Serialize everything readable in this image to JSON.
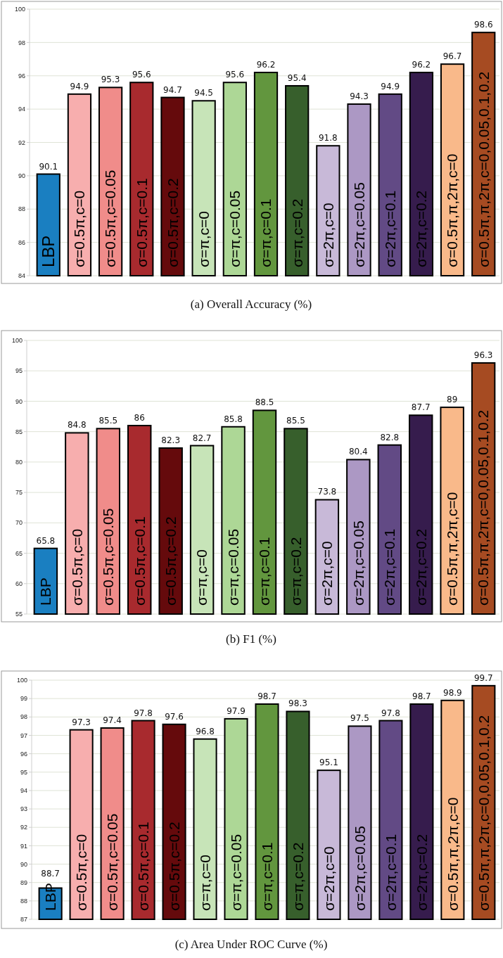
{
  "chart_data": [
    {
      "type": "bar",
      "title": "(a) Overall Accuracy (%)",
      "categories": [
        "LBP",
        "σ=0.5π,c=0",
        "σ=0.5π,c=0.05",
        "σ=0.5π,c=0.1",
        "σ=0.5π,c=0.2",
        "σ=π,c=0",
        "σ=π,c=0.05",
        "σ=π,c=0.1",
        "σ=π,c=0.2",
        "σ=2π,c=0",
        "σ=2π,c=0.05",
        "σ=2π,c=0.1",
        "σ=2π,c=0.2",
        "σ=0.5π,π,2π,c=0",
        "σ=0.5π,π,2π,c=0,0.05,0.1,0.2"
      ],
      "values": [
        90.1,
        94.9,
        95.3,
        95.6,
        94.7,
        94.5,
        95.6,
        96.2,
        95.4,
        91.8,
        94.3,
        94.9,
        96.2,
        96.7,
        98.6
      ],
      "colors": [
        "#1a7fc1",
        "#f7aeae",
        "#f08c8a",
        "#a82a2e",
        "#650a0c",
        "#c7e4b8",
        "#add796",
        "#62963e",
        "#375f2c",
        "#c8b9d8",
        "#ac98c4",
        "#624a85",
        "#361c4d",
        "#f9b98a",
        "#a64b22"
      ],
      "ylim": [
        84,
        100
      ],
      "yticks": [
        84,
        86,
        88,
        90,
        92,
        94,
        96,
        98,
        100
      ],
      "grid": "y",
      "data_labels": true
    },
    {
      "type": "bar",
      "title": "(b) F1 (%)",
      "categories": [
        "LBP",
        "σ=0.5π,c=0",
        "σ=0.5π,c=0.05",
        "σ=0.5π,c=0.1",
        "σ=0.5π,c=0.2",
        "σ=π,c=0",
        "σ=π,c=0.05",
        "σ=π,c=0.1",
        "σ=π,c=0.2",
        "σ=2π,c=0",
        "σ=2π,c=0.05",
        "σ=2π,c=0.1",
        "σ=2π,c=0.2",
        "σ=0.5π,π,2π,c=0",
        "σ=0.5π,π,2π,c=0,0.05,0.1,0.2"
      ],
      "values": [
        65.8,
        84.8,
        85.5,
        86,
        82.3,
        82.7,
        85.8,
        88.5,
        85.5,
        73.8,
        80.4,
        82.8,
        87.7,
        89,
        96.3
      ],
      "colors": [
        "#1a7fc1",
        "#f7aeae",
        "#f08c8a",
        "#a82a2e",
        "#650a0c",
        "#c7e4b8",
        "#add796",
        "#62963e",
        "#375f2c",
        "#c8b9d8",
        "#ac98c4",
        "#624a85",
        "#361c4d",
        "#f9b98a",
        "#a64b22"
      ],
      "ylim": [
        55,
        100
      ],
      "yticks": [
        55,
        60,
        65,
        70,
        75,
        80,
        85,
        90,
        95,
        100
      ],
      "grid": "y",
      "data_labels": true
    },
    {
      "type": "bar",
      "title": "(c) Area Under ROC Curve (%)",
      "categories": [
        "LBP",
        "σ=0.5π,c=0",
        "σ=0.5π,c=0.05",
        "σ=0.5π,c=0.1",
        "σ=0.5π,c=0.2",
        "σ=π,c=0",
        "σ=π,c=0.05",
        "σ=π,c=0.1",
        "σ=π,c=0.2",
        "σ=2π,c=0",
        "σ=2π,c=0.05",
        "σ=2π,c=0.1",
        "σ=2π,c=0.2",
        "σ=0.5π,π,2π,c=0",
        "σ=0.5π,π,2π,c=0,0.05,0.1,0.2"
      ],
      "values": [
        88.7,
        97.3,
        97.4,
        97.8,
        97.6,
        96.8,
        97.9,
        98.7,
        98.3,
        95.1,
        97.5,
        97.8,
        98.7,
        98.9,
        99.7
      ],
      "colors": [
        "#1a7fc1",
        "#f7aeae",
        "#f08c8a",
        "#a82a2e",
        "#650a0c",
        "#c7e4b8",
        "#add796",
        "#62963e",
        "#375f2c",
        "#c8b9d8",
        "#ac98c4",
        "#624a85",
        "#361c4d",
        "#f9b98a",
        "#a64b22"
      ],
      "ylim": [
        87,
        100
      ],
      "yticks": [
        87,
        88,
        89,
        90,
        91,
        92,
        93,
        94,
        95,
        96,
        97,
        98,
        99,
        100
      ],
      "grid": "y",
      "data_labels": true
    }
  ]
}
